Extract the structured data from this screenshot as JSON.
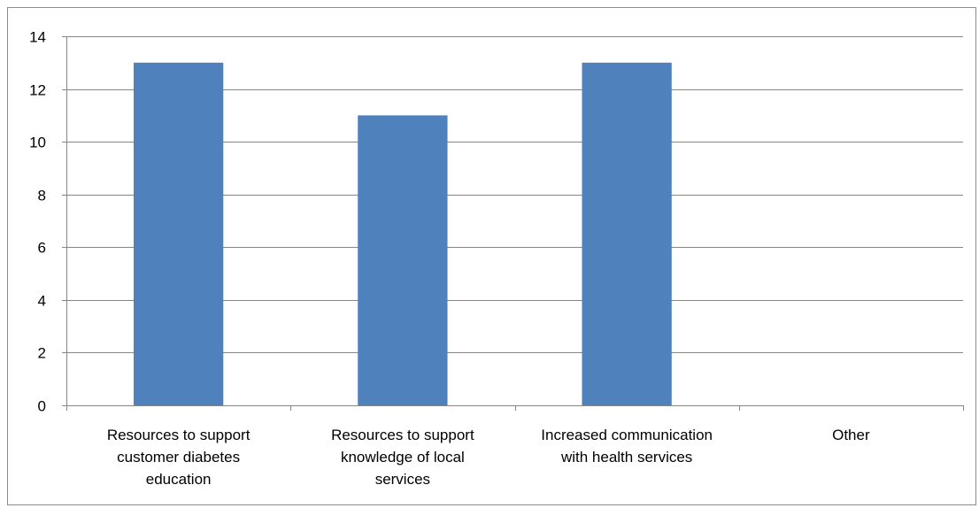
{
  "chart_data": {
    "type": "bar",
    "title": "",
    "xlabel": "",
    "ylabel": "",
    "categories": [
      [
        "Resources to support",
        "customer diabetes",
        "education"
      ],
      [
        "Resources to support",
        "knowledge of local",
        "services"
      ],
      [
        "Increased communication",
        "with health services"
      ],
      [
        "Other"
      ]
    ],
    "values": [
      13,
      11,
      13,
      0
    ],
    "ylim": [
      0,
      14
    ],
    "yticks": [
      "0",
      "2",
      "4",
      "6",
      "8",
      "10",
      "12",
      "14"
    ],
    "grid": true,
    "legend": "none",
    "colors": {
      "bar": "#4F81BD",
      "gridline": "#868686",
      "axis": "#868686"
    }
  }
}
